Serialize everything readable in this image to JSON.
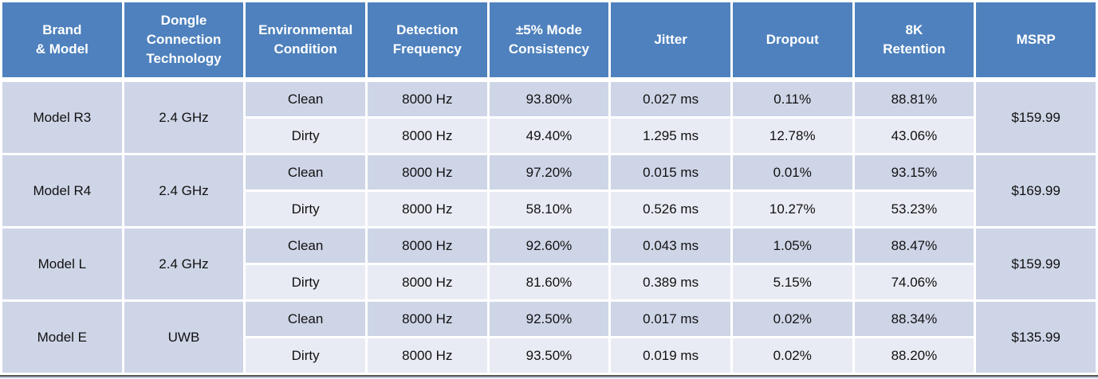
{
  "table": {
    "columns": [
      "Brand\n& Model",
      "Dongle\nConnection\nTechnology",
      "Environmental\nCondition",
      "Detection\nFrequency",
      "±5% Mode\nConsistency",
      "Jitter",
      "Dropout",
      "8K\nRetention",
      "MSRP"
    ],
    "groups": [
      {
        "brand": "Model R3",
        "technology": "2.4 GHz",
        "msrp": "$159.99",
        "rows": [
          {
            "condition": "Clean",
            "detection_frequency": "8000 Hz",
            "mode_consistency": "93.80%",
            "jitter": "0.027 ms",
            "dropout": "0.11%",
            "retention_8k": "88.81%"
          },
          {
            "condition": "Dirty",
            "detection_frequency": "8000 Hz",
            "mode_consistency": "49.40%",
            "jitter": "1.295 ms",
            "dropout": "12.78%",
            "retention_8k": "43.06%"
          }
        ]
      },
      {
        "brand": "Model R4",
        "technology": "2.4 GHz",
        "msrp": "$169.99",
        "rows": [
          {
            "condition": "Clean",
            "detection_frequency": "8000 Hz",
            "mode_consistency": "97.20%",
            "jitter": "0.015 ms",
            "dropout": "0.01%",
            "retention_8k": "93.15%"
          },
          {
            "condition": "Dirty",
            "detection_frequency": "8000 Hz",
            "mode_consistency": "58.10%",
            "jitter": "0.526 ms",
            "dropout": "10.27%",
            "retention_8k": "53.23%"
          }
        ]
      },
      {
        "brand": "Model L",
        "technology": "2.4 GHz",
        "msrp": "$159.99",
        "rows": [
          {
            "condition": "Clean",
            "detection_frequency": "8000 Hz",
            "mode_consistency": "92.60%",
            "jitter": "0.043 ms",
            "dropout": "1.05%",
            "retention_8k": "88.47%"
          },
          {
            "condition": "Dirty",
            "detection_frequency": "8000 Hz",
            "mode_consistency": "81.60%",
            "jitter": "0.389 ms",
            "dropout": "5.15%",
            "retention_8k": "74.06%"
          }
        ]
      },
      {
        "brand": "Model E",
        "technology": "UWB",
        "msrp": "$135.99",
        "rows": [
          {
            "condition": "Clean",
            "detection_frequency": "8000 Hz",
            "mode_consistency": "92.50%",
            "jitter": "0.017 ms",
            "dropout": "0.02%",
            "retention_8k": "88.34%"
          },
          {
            "condition": "Dirty",
            "detection_frequency": "8000 Hz",
            "mode_consistency": "93.50%",
            "jitter": "0.019 ms",
            "dropout": "0.02%",
            "retention_8k": "88.20%"
          }
        ]
      }
    ],
    "colors": {
      "header_bg": "#4E81BD",
      "header_text": "#FFFFFF",
      "band_dark": "#CED5E7",
      "band_light": "#E9EBF4",
      "body_text": "#111111"
    }
  }
}
